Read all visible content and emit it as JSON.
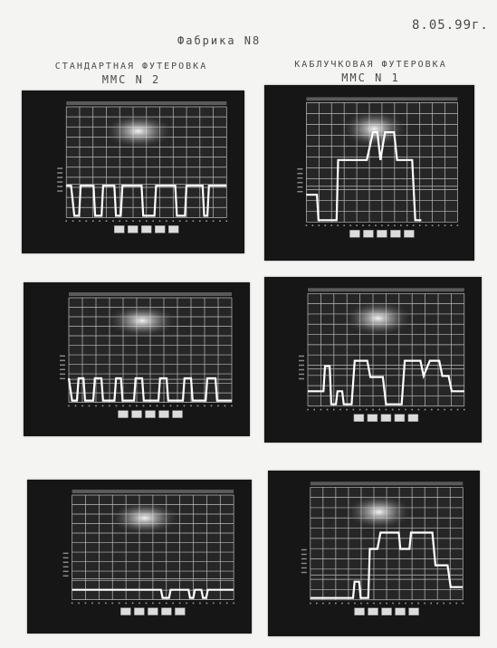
{
  "date": "8.05.99г.",
  "heading": "Фабрика N8",
  "columns": [
    {
      "line1": "СТАНДАРТНАЯ ФУТЕРОВКА",
      "line2": "ММС N 2"
    },
    {
      "line1": "КАБЛУЧКОВАЯ ФУТЕРОВКА",
      "line2": "ММС N 1"
    }
  ],
  "photos": [
    {
      "id": "left-1",
      "baseline": 0.3,
      "trace": [
        [
          0,
          0.28
        ],
        [
          0.03,
          0.28
        ],
        [
          0.05,
          0
        ],
        [
          0.08,
          0
        ],
        [
          0.09,
          0.28
        ],
        [
          0.17,
          0.28
        ],
        [
          0.18,
          0
        ],
        [
          0.22,
          0
        ],
        [
          0.23,
          0.28
        ],
        [
          0.3,
          0.28
        ],
        [
          0.31,
          0
        ],
        [
          0.34,
          0
        ],
        [
          0.35,
          0.28
        ],
        [
          0.47,
          0.28
        ],
        [
          0.48,
          0
        ],
        [
          0.55,
          0
        ],
        [
          0.56,
          0.28
        ],
        [
          0.68,
          0.28
        ],
        [
          0.69,
          0
        ],
        [
          0.74,
          0
        ],
        [
          0.75,
          0.28
        ],
        [
          0.85,
          0.28
        ],
        [
          0.86,
          0
        ],
        [
          0.88,
          0
        ],
        [
          0.89,
          0.28
        ],
        [
          1,
          0.28
        ]
      ]
    },
    {
      "id": "right-1",
      "baseline": 0.3,
      "trace": [
        [
          0,
          0.22
        ],
        [
          0.07,
          0.22
        ],
        [
          0.08,
          0
        ],
        [
          0.2,
          0
        ],
        [
          0.21,
          0.52
        ],
        [
          0.4,
          0.52
        ],
        [
          0.44,
          0.76
        ],
        [
          0.47,
          0.76
        ],
        [
          0.49,
          0.52
        ],
        [
          0.52,
          0.76
        ],
        [
          0.58,
          0.76
        ],
        [
          0.6,
          0.52
        ],
        [
          0.7,
          0.52
        ],
        [
          0.72,
          0
        ],
        [
          0.76,
          0
        ]
      ]
    },
    {
      "id": "left-2",
      "baseline": 0.22,
      "trace": [
        [
          0,
          0.22
        ],
        [
          0.02,
          0
        ],
        [
          0.05,
          0
        ],
        [
          0.06,
          0.22
        ],
        [
          0.09,
          0.22
        ],
        [
          0.1,
          0
        ],
        [
          0.15,
          0
        ],
        [
          0.16,
          0.22
        ],
        [
          0.2,
          0.22
        ],
        [
          0.21,
          0
        ],
        [
          0.28,
          0
        ],
        [
          0.29,
          0.22
        ],
        [
          0.32,
          0.22
        ],
        [
          0.33,
          0
        ],
        [
          0.4,
          0
        ],
        [
          0.41,
          0.22
        ],
        [
          0.45,
          0.22
        ],
        [
          0.46,
          0
        ],
        [
          0.55,
          0
        ],
        [
          0.56,
          0.22
        ],
        [
          0.6,
          0.22
        ],
        [
          0.61,
          0
        ],
        [
          0.7,
          0
        ],
        [
          0.71,
          0.22
        ],
        [
          0.75,
          0.22
        ],
        [
          0.76,
          0
        ],
        [
          0.84,
          0
        ],
        [
          0.85,
          0.22
        ],
        [
          0.9,
          0.22
        ],
        [
          0.91,
          0
        ],
        [
          1,
          0
        ]
      ]
    },
    {
      "id": "right-2",
      "baseline": 0.33,
      "trace": [
        [
          0,
          0.12
        ],
        [
          0.1,
          0.12
        ],
        [
          0.11,
          0.35
        ],
        [
          0.14,
          0.35
        ],
        [
          0.15,
          0
        ],
        [
          0.18,
          0
        ],
        [
          0.19,
          0.12
        ],
        [
          0.22,
          0.12
        ],
        [
          0.23,
          0
        ],
        [
          0.28,
          0
        ],
        [
          0.3,
          0.4
        ],
        [
          0.38,
          0.4
        ],
        [
          0.4,
          0.25
        ],
        [
          0.48,
          0.25
        ],
        [
          0.5,
          0
        ],
        [
          0.6,
          0
        ],
        [
          0.62,
          0.4
        ],
        [
          0.72,
          0.4
        ],
        [
          0.74,
          0.26
        ],
        [
          0.78,
          0.4
        ],
        [
          0.84,
          0.4
        ],
        [
          0.86,
          0.26
        ],
        [
          0.9,
          0.26
        ],
        [
          0.92,
          0.12
        ],
        [
          1,
          0.12
        ]
      ]
    },
    {
      "id": "left-3",
      "baseline": 0.2,
      "trace": [
        [
          0,
          0.08
        ],
        [
          0.55,
          0.08
        ],
        [
          0.56,
          0
        ],
        [
          0.6,
          0
        ],
        [
          0.61,
          0.08
        ],
        [
          0.72,
          0.08
        ],
        [
          0.73,
          0
        ],
        [
          0.75,
          0
        ],
        [
          0.76,
          0.08
        ],
        [
          0.8,
          0.08
        ],
        [
          0.81,
          0
        ],
        [
          0.83,
          0
        ],
        [
          0.84,
          0.08
        ],
        [
          1,
          0.08
        ]
      ]
    },
    {
      "id": "right-3",
      "baseline": 0.22,
      "trace": [
        [
          0,
          0
        ],
        [
          0.28,
          0
        ],
        [
          0.29,
          0.15
        ],
        [
          0.32,
          0.15
        ],
        [
          0.33,
          0
        ],
        [
          0.38,
          0
        ],
        [
          0.39,
          0.45
        ],
        [
          0.44,
          0.45
        ],
        [
          0.46,
          0.6
        ],
        [
          0.58,
          0.6
        ],
        [
          0.59,
          0.45
        ],
        [
          0.65,
          0.45
        ],
        [
          0.66,
          0.6
        ],
        [
          0.8,
          0.6
        ],
        [
          0.82,
          0.3
        ],
        [
          0.9,
          0.3
        ],
        [
          0.92,
          0.1
        ],
        [
          1,
          0.1
        ]
      ]
    }
  ]
}
